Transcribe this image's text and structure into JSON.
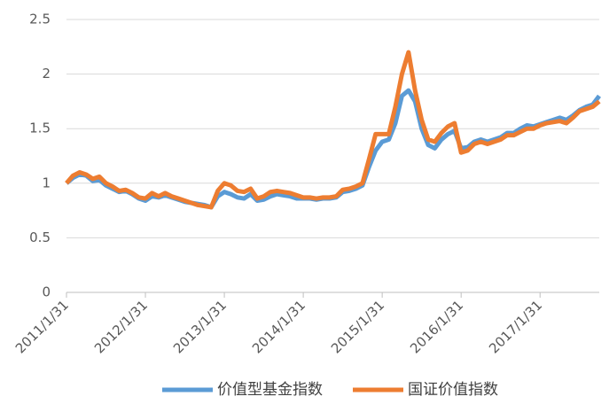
{
  "chart_data": {
    "type": "line",
    "categories": [
      "2011/1/31",
      null,
      null,
      null,
      null,
      null,
      null,
      null,
      null,
      null,
      null,
      null,
      "2012/1/31",
      null,
      null,
      null,
      null,
      null,
      null,
      null,
      null,
      null,
      null,
      null,
      "2013/1/31",
      null,
      null,
      null,
      null,
      null,
      null,
      null,
      null,
      null,
      null,
      null,
      "2014/1/31",
      null,
      null,
      null,
      null,
      null,
      null,
      null,
      null,
      null,
      null,
      null,
      "2015/1/31",
      null,
      null,
      null,
      null,
      null,
      null,
      null,
      null,
      null,
      null,
      null,
      "2016/1/31",
      null,
      null,
      null,
      null,
      null,
      null,
      null,
      null,
      null,
      null,
      null,
      "2017/1/31",
      null,
      null,
      null,
      null,
      null,
      null,
      null,
      null,
      null
    ],
    "series": [
      {
        "name": "价值型基金指数",
        "color": "#5b9bd5",
        "values": [
          1.0,
          1.05,
          1.08,
          1.07,
          1.02,
          1.03,
          0.98,
          0.95,
          0.92,
          0.93,
          0.9,
          0.86,
          0.84,
          0.88,
          0.87,
          0.89,
          0.87,
          0.85,
          0.83,
          0.82,
          0.81,
          0.8,
          0.78,
          0.88,
          0.92,
          0.9,
          0.87,
          0.86,
          0.9,
          0.84,
          0.85,
          0.88,
          0.9,
          0.89,
          0.88,
          0.86,
          0.86,
          0.86,
          0.85,
          0.86,
          0.86,
          0.87,
          0.92,
          0.93,
          0.95,
          0.98,
          1.15,
          1.3,
          1.38,
          1.4,
          1.55,
          1.8,
          1.85,
          1.75,
          1.5,
          1.35,
          1.32,
          1.4,
          1.45,
          1.48,
          1.32,
          1.33,
          1.38,
          1.4,
          1.38,
          1.4,
          1.42,
          1.46,
          1.46,
          1.5,
          1.53,
          1.52,
          1.54,
          1.56,
          1.58,
          1.6,
          1.58,
          1.62,
          1.67,
          1.7,
          1.72,
          1.8
        ]
      },
      {
        "name": "国证价值指数",
        "color": "#ed7d31",
        "values": [
          1.0,
          1.07,
          1.1,
          1.08,
          1.04,
          1.06,
          1.0,
          0.97,
          0.93,
          0.94,
          0.91,
          0.87,
          0.86,
          0.91,
          0.88,
          0.91,
          0.88,
          0.86,
          0.84,
          0.82,
          0.8,
          0.79,
          0.78,
          0.93,
          1.0,
          0.98,
          0.93,
          0.92,
          0.95,
          0.86,
          0.88,
          0.92,
          0.93,
          0.92,
          0.91,
          0.89,
          0.87,
          0.87,
          0.86,
          0.87,
          0.87,
          0.88,
          0.94,
          0.95,
          0.97,
          1.0,
          1.22,
          1.45,
          1.45,
          1.45,
          1.7,
          2.0,
          2.2,
          1.85,
          1.58,
          1.4,
          1.38,
          1.46,
          1.52,
          1.55,
          1.28,
          1.3,
          1.36,
          1.38,
          1.36,
          1.38,
          1.4,
          1.44,
          1.44,
          1.47,
          1.5,
          1.5,
          1.53,
          1.55,
          1.56,
          1.57,
          1.55,
          1.6,
          1.66,
          1.68,
          1.7,
          1.75
        ]
      }
    ],
    "ylim": [
      0,
      2.5
    ],
    "yticks": [
      0,
      0.5,
      1,
      1.5,
      2,
      2.5
    ],
    "grid": true,
    "legend": "bottom"
  }
}
